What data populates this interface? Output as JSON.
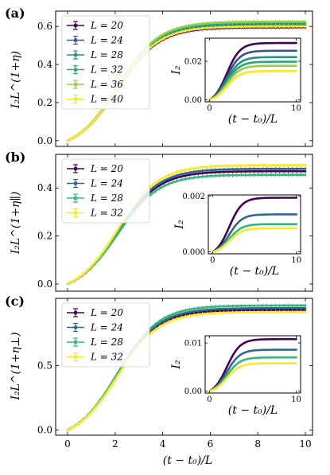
{
  "figure": {
    "xlabel": "(t − t₀)/L",
    "palette": {
      "L20": "#440154",
      "L24": "#3b528b",
      "L28": "#21918c",
      "L32": "#3fbc73",
      "L36": "#a0da39",
      "L40": "#fde725"
    }
  },
  "chart_data": [
    {
      "panel_label": "(a)",
      "type": "line",
      "ylabel": "I₂L^(1+η)",
      "xlim": [
        -0.5,
        10.3
      ],
      "ylim": [
        -0.03,
        0.68
      ],
      "xticks": [
        0,
        2,
        4,
        6,
        8,
        10
      ],
      "yticks": [
        0.0,
        0.2,
        0.4,
        0.6
      ],
      "ytick_labels": [
        "0.0",
        "0.2",
        "0.4",
        "0.6"
      ],
      "legend_position": "upper-left",
      "series": [
        {
          "name": "L = 20",
          "color": "#440154",
          "plateau": 0.595
        },
        {
          "name": "L = 24",
          "color": "#3b528b",
          "plateau": 0.605
        },
        {
          "name": "L = 28",
          "color": "#21918c",
          "plateau": 0.61
        },
        {
          "name": "L = 32",
          "color": "#2fa86e",
          "plateau": 0.62
        },
        {
          "name": "L = 36",
          "color": "#8fd14f",
          "plateau": 0.625
        },
        {
          "name": "L = 40",
          "color": "#fde725",
          "plateau": 0.6
        }
      ],
      "inset": {
        "ylabel": "I₂",
        "xlabel": "(t − t₀)/L",
        "xlim": [
          -0.5,
          10.5
        ],
        "ylim": [
          -0.001,
          0.032
        ],
        "xticks": [
          0,
          10
        ],
        "yticks": [
          0.0,
          0.02
        ],
        "ytick_labels": [
          "0.00",
          "0.02"
        ],
        "plateaus": [
          0.0295,
          0.0255,
          0.0222,
          0.0198,
          0.0177,
          0.015
        ]
      }
    },
    {
      "panel_label": "(b)",
      "type": "line",
      "ylabel": "I₂L^(1+η∥)",
      "xlim": [
        -0.5,
        10.3
      ],
      "ylim": [
        -0.03,
        0.54
      ],
      "xticks": [
        0,
        2,
        4,
        6,
        8,
        10
      ],
      "yticks": [
        0.0,
        0.2,
        0.4
      ],
      "ytick_labels": [
        "0.0",
        "0.2",
        "0.4"
      ],
      "legend_position": "upper-left",
      "series": [
        {
          "name": "L = 20",
          "color": "#440154",
          "plateau": 0.47
        },
        {
          "name": "L = 24",
          "color": "#31688e",
          "plateau": 0.48
        },
        {
          "name": "L = 28",
          "color": "#35b779",
          "plateau": 0.455
        },
        {
          "name": "L = 32",
          "color": "#fde725",
          "plateau": 0.495
        }
      ],
      "inset": {
        "ylabel": "I₂",
        "xlabel": "(t − t₀)/L",
        "xlim": [
          -0.5,
          10.5
        ],
        "ylim": [
          -7e-05,
          0.00205
        ],
        "xticks": [
          0,
          10
        ],
        "yticks": [
          0.0,
          0.002
        ],
        "ytick_labels": [
          "0.000",
          "0.002"
        ],
        "plateaus": [
          0.00195,
          0.00135,
          0.001,
          0.00085
        ]
      }
    },
    {
      "panel_label": "(c)",
      "type": "line",
      "ylabel": "I₂L^(1+η⊥)",
      "xlim": [
        -0.5,
        10.3
      ],
      "ylim": [
        -0.04,
        1.02
      ],
      "xticks": [
        0,
        2,
        4,
        6,
        8,
        10
      ],
      "xtick_labels": [
        "0",
        "2",
        "4",
        "6",
        "8",
        "10"
      ],
      "yticks": [
        0.0,
        0.5
      ],
      "ytick_labels": [
        "0.0",
        "0.5"
      ],
      "legend_position": "upper-left",
      "series": [
        {
          "name": "L = 20",
          "color": "#440154",
          "plateau": 0.93
        },
        {
          "name": "L = 24",
          "color": "#31688e",
          "plateau": 0.945
        },
        {
          "name": "L = 28",
          "color": "#35b779",
          "plateau": 0.965
        },
        {
          "name": "L = 32",
          "color": "#fde725",
          "plateau": 0.915
        }
      ],
      "inset": {
        "ylabel": "I₂",
        "xlabel": "(t − t₀)/L",
        "xlim": [
          -0.5,
          10.5
        ],
        "ylim": [
          -0.0004,
          0.0115
        ],
        "xticks": [
          0,
          10
        ],
        "yticks": [
          0.0,
          0.01
        ],
        "ytick_labels": [
          "0.00",
          "0.01"
        ],
        "plateaus": [
          0.0108,
          0.0086,
          0.007,
          0.0058
        ]
      }
    }
  ]
}
